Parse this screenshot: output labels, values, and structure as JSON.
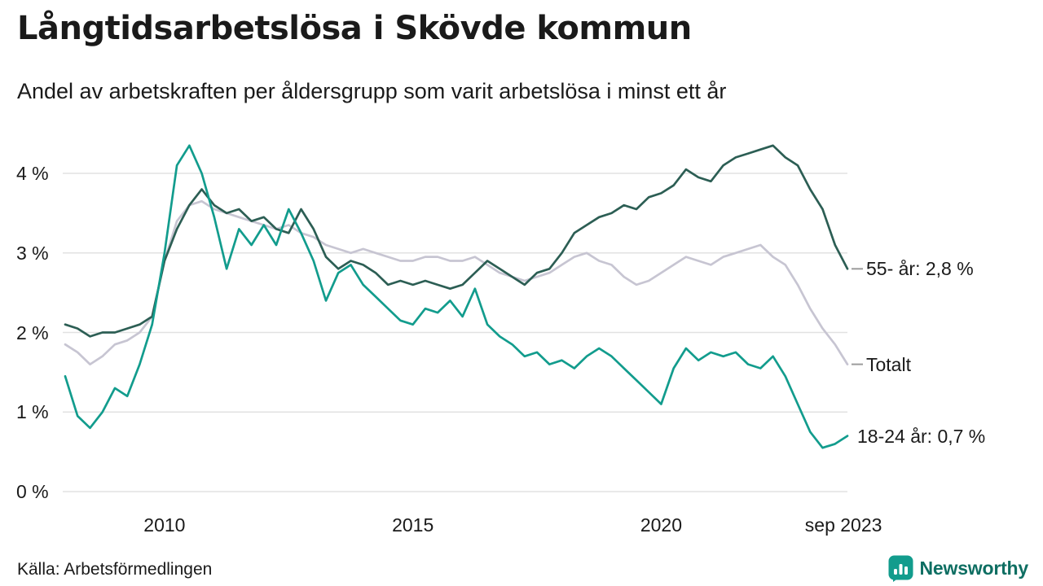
{
  "header": {
    "title": "Långtidsarbetslösa i Skövde kommun",
    "subtitle": "Andel av arbetskraften per åldersgrupp som varit arbetslösa i minst ett år"
  },
  "chart_data": {
    "type": "line",
    "title": "Långtidsarbetslösa i Skövde kommun",
    "subtitle": "Andel av arbetskraften per åldersgrupp som varit arbetslösa i minst ett år",
    "xlabel": "",
    "ylabel": "",
    "grid": "horizontal",
    "legend_position": "end-of-line",
    "xlim": [
      2008,
      2023.75
    ],
    "ylim": [
      0,
      4.5
    ],
    "yticks": [
      {
        "v": 0,
        "label": "0 %"
      },
      {
        "v": 1,
        "label": "1 %"
      },
      {
        "v": 2,
        "label": "2 %"
      },
      {
        "v": 3,
        "label": "3 %"
      },
      {
        "v": 4,
        "label": "4 %"
      }
    ],
    "xticks": [
      {
        "v": 2010,
        "label": "2010"
      },
      {
        "v": 2015,
        "label": "2015"
      },
      {
        "v": 2020,
        "label": "2020"
      },
      {
        "v": 2023.67,
        "label": "sep 2023"
      }
    ],
    "x": [
      2008,
      2008.25,
      2008.5,
      2008.75,
      2009,
      2009.25,
      2009.5,
      2009.75,
      2010,
      2010.25,
      2010.5,
      2010.75,
      2011,
      2011.25,
      2011.5,
      2011.75,
      2012,
      2012.25,
      2012.5,
      2012.75,
      2013,
      2013.25,
      2013.5,
      2013.75,
      2014,
      2014.25,
      2014.5,
      2014.75,
      2015,
      2015.25,
      2015.5,
      2015.75,
      2016,
      2016.25,
      2016.5,
      2016.75,
      2017,
      2017.25,
      2017.5,
      2017.75,
      2018,
      2018.25,
      2018.5,
      2018.75,
      2019,
      2019.25,
      2019.5,
      2019.75,
      2020,
      2020.25,
      2020.5,
      2020.75,
      2021,
      2021.25,
      2021.5,
      2021.75,
      2022,
      2022.25,
      2022.5,
      2022.75,
      2023,
      2023.25,
      2023.5,
      2023.75
    ],
    "series": [
      {
        "name": "Totalt",
        "end_label": "Totalt",
        "color": "#c7c5d2",
        "end_dash": true,
        "end_value": 1.6,
        "values": [
          1.85,
          1.75,
          1.6,
          1.7,
          1.85,
          1.9,
          2.0,
          2.2,
          2.9,
          3.4,
          3.6,
          3.65,
          3.55,
          3.5,
          3.45,
          3.4,
          3.35,
          3.3,
          3.35,
          3.25,
          3.2,
          3.1,
          3.05,
          3.0,
          3.05,
          3.0,
          2.95,
          2.9,
          2.9,
          2.95,
          2.95,
          2.9,
          2.9,
          2.95,
          2.85,
          2.75,
          2.7,
          2.65,
          2.7,
          2.75,
          2.85,
          2.95,
          3.0,
          2.9,
          2.85,
          2.7,
          2.6,
          2.65,
          2.75,
          2.85,
          2.95,
          2.9,
          2.85,
          2.95,
          3.0,
          3.05,
          3.1,
          2.95,
          2.85,
          2.6,
          2.3,
          2.05,
          1.85,
          1.6
        ]
      },
      {
        "name": "55- år",
        "end_label": "55- år: 2,8 %",
        "color": "#2c5e54",
        "end_dash": true,
        "end_value": 2.8,
        "values": [
          2.1,
          2.05,
          1.95,
          2.0,
          2.0,
          2.05,
          2.1,
          2.2,
          2.9,
          3.3,
          3.6,
          3.8,
          3.6,
          3.5,
          3.55,
          3.4,
          3.45,
          3.3,
          3.25,
          3.55,
          3.3,
          2.95,
          2.8,
          2.9,
          2.85,
          2.75,
          2.6,
          2.65,
          2.6,
          2.65,
          2.6,
          2.55,
          2.6,
          2.75,
          2.9,
          2.8,
          2.7,
          2.6,
          2.75,
          2.8,
          3.0,
          3.25,
          3.35,
          3.45,
          3.5,
          3.6,
          3.55,
          3.7,
          3.75,
          3.85,
          4.05,
          3.95,
          3.9,
          4.1,
          4.2,
          4.25,
          4.3,
          4.35,
          4.2,
          4.1,
          3.8,
          3.55,
          3.1,
          2.8
        ]
      },
      {
        "name": "18-24 år",
        "end_label": "18-24 år: 0,7 %",
        "color": "#129c8d",
        "end_dash": false,
        "end_value": 0.7,
        "values": [
          1.45,
          0.95,
          0.8,
          1.0,
          1.3,
          1.2,
          1.6,
          2.1,
          3.0,
          4.1,
          4.35,
          4.0,
          3.45,
          2.8,
          3.3,
          3.1,
          3.35,
          3.1,
          3.55,
          3.25,
          2.9,
          2.4,
          2.75,
          2.85,
          2.6,
          2.45,
          2.3,
          2.15,
          2.1,
          2.3,
          2.25,
          2.4,
          2.2,
          2.55,
          2.1,
          1.95,
          1.85,
          1.7,
          1.75,
          1.6,
          1.65,
          1.55,
          1.7,
          1.8,
          1.7,
          1.55,
          1.4,
          1.25,
          1.1,
          1.55,
          1.8,
          1.65,
          1.75,
          1.7,
          1.75,
          1.6,
          1.55,
          1.7,
          1.45,
          1.1,
          0.75,
          0.55,
          0.6,
          0.7
        ]
      }
    ],
    "style": {
      "grid_color": "#e2e2e2",
      "dash_color": "#9b9b9b",
      "accent_teal": "#129c8d",
      "accent_dark": "#2c5e54",
      "accent_gray": "#c7c5d2"
    }
  },
  "footer": {
    "source": "Källa: Arbetsförmedlingen",
    "brand": "Newsworthy"
  }
}
